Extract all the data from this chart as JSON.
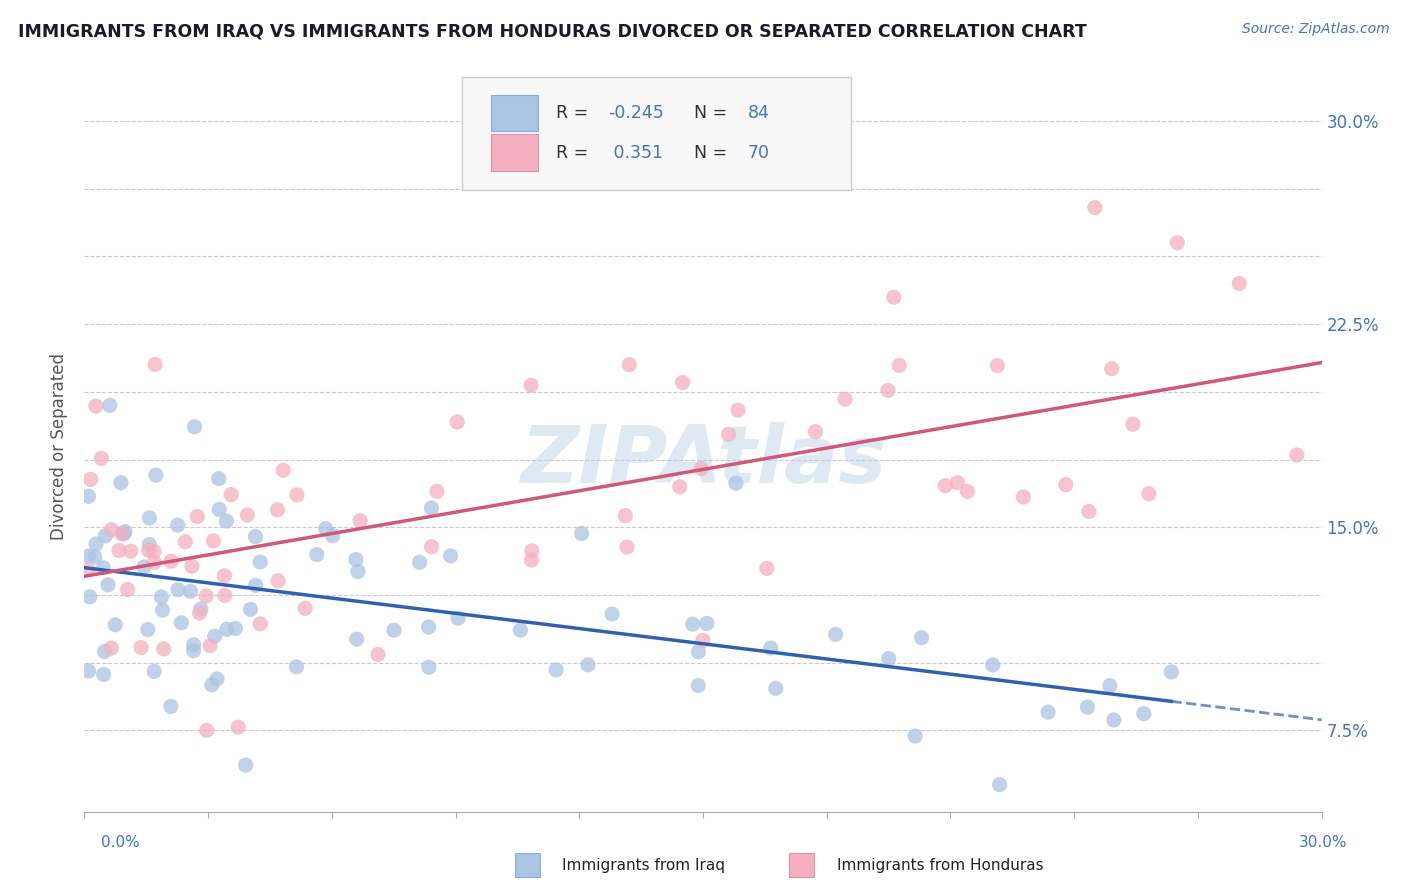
{
  "title": "IMMIGRANTS FROM IRAQ VS IMMIGRANTS FROM HONDURAS DIVORCED OR SEPARATED CORRELATION CHART",
  "source_text": "Source: ZipAtlas.com",
  "ylabel": "Divorced or Separated",
  "xlim": [
    0.0,
    0.3
  ],
  "ylim": [
    0.045,
    0.315
  ],
  "ytick_vals": [
    0.075,
    0.1,
    0.125,
    0.15,
    0.175,
    0.2,
    0.225,
    0.25,
    0.275,
    0.3
  ],
  "right_ytick_labels": [
    "7.5%",
    "",
    "",
    "15.0%",
    "",
    "",
    "22.5%",
    "",
    "",
    "30.0%"
  ],
  "legend_r_iraq": "-0.245",
  "legend_n_iraq": "84",
  "legend_r_honduras": "0.351",
  "legend_n_honduras": "70",
  "iraq_fill_color": "#aac4e2",
  "honduras_fill_color": "#f5afc0",
  "iraq_line_color": "#3060b0",
  "honduras_line_color": "#d05878",
  "watermark": "ZIPAtlas",
  "background_color": "#ffffff",
  "grid_color": "#c8c8d8",
  "title_color": "#1a1a2e",
  "source_color": "#4472c4",
  "label_color": "#555555",
  "right_tick_color": "#4472c4",
  "bottom_label_color": "#4472c4"
}
